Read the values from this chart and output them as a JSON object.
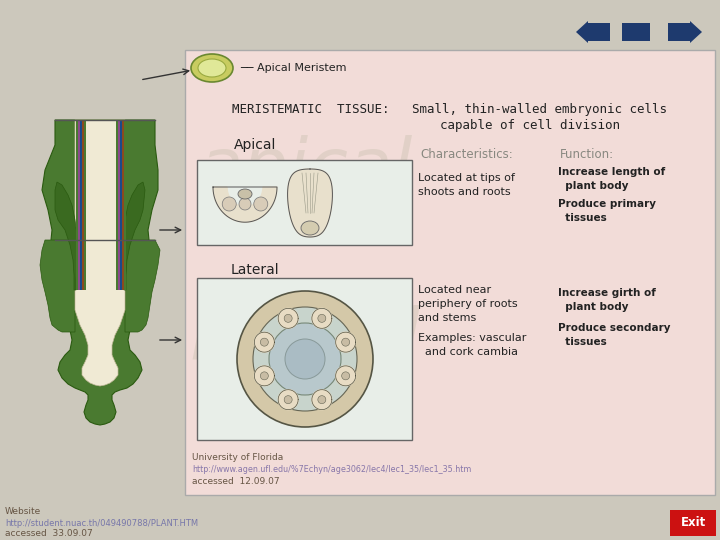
{
  "bg_color": "#ccc8bc",
  "panel_color": "#f2dcd8",
  "title1": "MERISTEMATIC  TISSUE:   Small, thin-walled embryonic cells",
  "title2": "capable of cell division",
  "char_label": "Characteristics:",
  "func_label": "Function:",
  "apical_label": "Apical",
  "lateral_label": "Lateral",
  "apical_char": "Located at tips of\nshoots and roots",
  "apical_func1": "Increase length of",
  "apical_func2": "  plant body",
  "apical_func3": "Produce primary",
  "apical_func4": "  tissues",
  "lateral_char1": "Located near",
  "lateral_char2": "periphery of roots",
  "lateral_char3": "and stems",
  "lateral_char4": "Examples: vascular",
  "lateral_char5": "  and cork cambia",
  "lateral_func1": "Increase girth of",
  "lateral_func2": "  plant body",
  "lateral_func3": "Produce secondary",
  "lateral_func4": "  tissues",
  "ref1": "University of Florida",
  "ref2": "http://www.agen.ufl.edu/%7Echyn/age3062/lec4/lec1_35/lec1_35.htm",
  "ref3": "accessed  12.09.07",
  "bottom_text1": "Website",
  "bottom_text2": "http://student.nuac.th/049490788/PLANT.HTM",
  "bottom_text3": "accessed  33.09.07",
  "nav_color": "#1e3a6e",
  "exit_color": "#cc1111",
  "arrow_color": "#333333",
  "text_dark": "#222222",
  "text_gray": "#888880",
  "watermark_color": "#c8c0ae"
}
